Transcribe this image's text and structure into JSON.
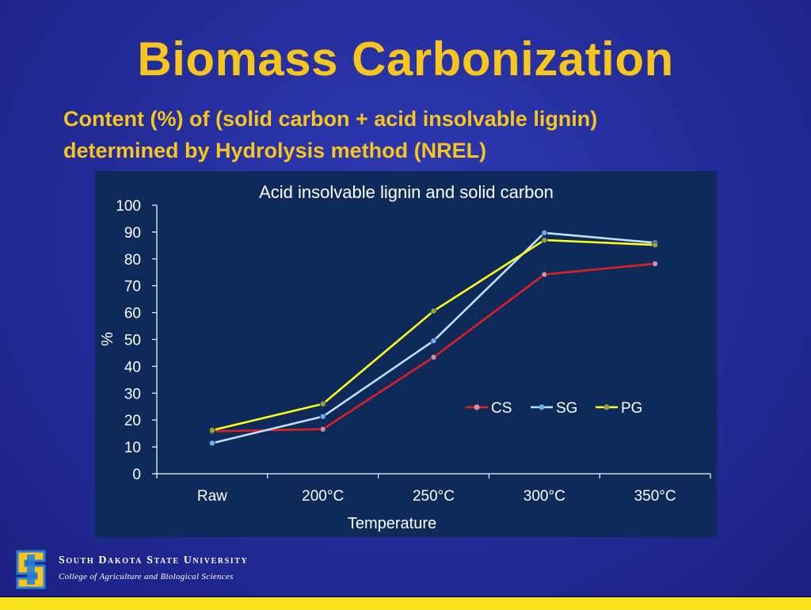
{
  "slide": {
    "title": "Biomass Carbonization",
    "subtitle_line1": "Content (%) of (solid carbon + acid insolvable lignin)",
    "subtitle_line2": "determined by Hydrolysis method (NREL)"
  },
  "footer": {
    "university": "South Dakota State University",
    "college": "College of Agriculture and Biological Sciences"
  },
  "colors": {
    "background": "#222b98",
    "title": "#f7c51d",
    "panel": "#0e2a5b",
    "bottom_bar": "#f7e21d"
  },
  "chart_data": {
    "type": "line",
    "title": "Acid insolvable lignin and solid carbon",
    "xlabel": "Temperature",
    "ylabel": "%",
    "ylim": [
      0,
      100
    ],
    "yticks": [
      "0",
      "10",
      "20",
      "30",
      "40",
      "50",
      "60",
      "70",
      "80",
      "90",
      "100"
    ],
    "categories": [
      "Raw",
      "200°C",
      "250°C",
      "300°C",
      "350°C"
    ],
    "legend_position": "right-middle",
    "grid": false,
    "series": [
      {
        "name": "CS",
        "color": "#e02020",
        "marker": "#d98aa0",
        "values": [
          15.8,
          16.6,
          43.4,
          74.2,
          78.2
        ]
      },
      {
        "name": "SG",
        "color": "#bfe0ff",
        "marker": "#6aaef0",
        "values": [
          11.4,
          21.3,
          49.5,
          89.7,
          86.0
        ]
      },
      {
        "name": "PG",
        "color": "#ffff1a",
        "marker": "#9aa33a",
        "values": [
          16.2,
          26.0,
          60.6,
          87.0,
          85.2
        ]
      }
    ]
  }
}
